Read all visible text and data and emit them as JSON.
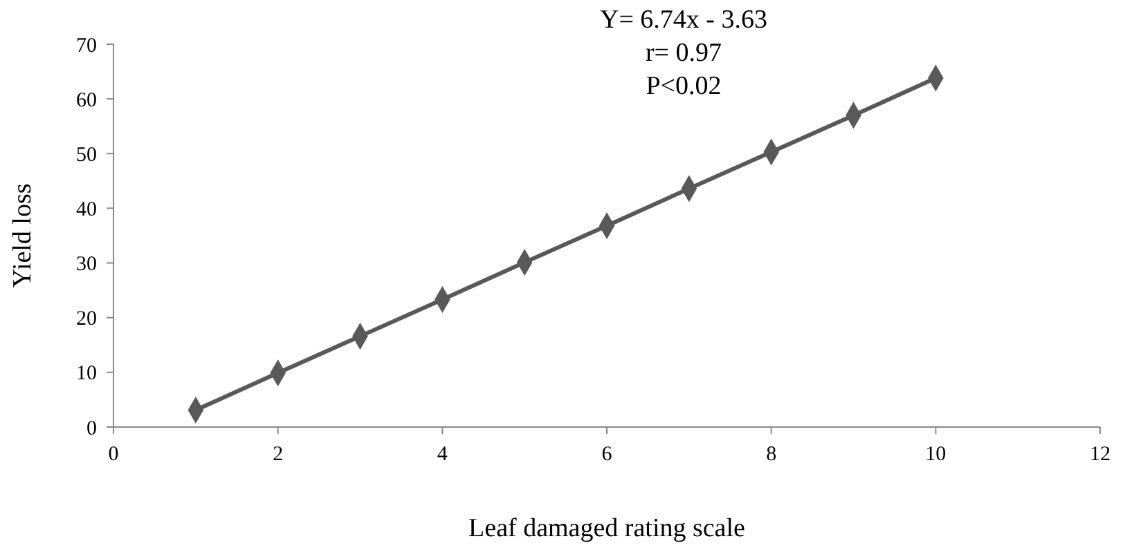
{
  "chart_data": {
    "type": "line",
    "xlabel": "Leaf damaged rating scale",
    "ylabel": "Yield loss",
    "annotations": [
      "Y= 6.74x - 3.63",
      "r= 0.97",
      "P<0.02"
    ],
    "x": [
      1,
      2,
      3,
      4,
      5,
      6,
      7,
      8,
      9,
      10
    ],
    "series": [
      {
        "color": "#595959",
        "values": [
          3.1,
          9.9,
          16.6,
          23.3,
          30.1,
          36.8,
          43.6,
          50.3,
          57.0,
          63.8
        ]
      }
    ],
    "xlim": [
      0,
      12
    ],
    "xticks": [
      0,
      2,
      4,
      6,
      8,
      10,
      12
    ],
    "ylim": [
      0,
      70
    ],
    "yticks": [
      0,
      10,
      20,
      30,
      40,
      50,
      60,
      70
    ],
    "marker": "diamond",
    "line_style": "solid"
  }
}
